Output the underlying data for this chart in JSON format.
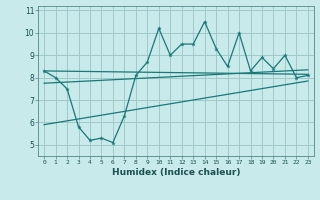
{
  "xlabel": "Humidex (Indice chaleur)",
  "background_color": "#c8eaea",
  "grid_color": "#a0c8c8",
  "line_color": "#1a7878",
  "xlim": [
    -0.5,
    23.5
  ],
  "ylim": [
    4.5,
    11.2
  ],
  "yticks": [
    5,
    6,
    7,
    8,
    9,
    10,
    11
  ],
  "xticks": [
    0,
    1,
    2,
    3,
    4,
    5,
    6,
    7,
    8,
    9,
    10,
    11,
    12,
    13,
    14,
    15,
    16,
    17,
    18,
    19,
    20,
    21,
    22,
    23
  ],
  "scatter_x": [
    0,
    1,
    2,
    3,
    4,
    5,
    6,
    7,
    8,
    9,
    10,
    11,
    12,
    13,
    14,
    15,
    16,
    17,
    18,
    19,
    20,
    21,
    22,
    23
  ],
  "scatter_y": [
    8.3,
    8.0,
    7.5,
    5.8,
    5.2,
    5.3,
    5.1,
    6.3,
    8.1,
    8.7,
    10.2,
    9.0,
    9.5,
    9.5,
    10.5,
    9.3,
    8.5,
    10.0,
    8.3,
    8.9,
    8.4,
    9.0,
    8.0,
    8.1
  ],
  "line1_x": [
    0,
    23
  ],
  "line1_y": [
    8.3,
    8.15
  ],
  "line2_x": [
    0,
    23
  ],
  "line2_y": [
    7.75,
    8.35
  ],
  "line3_x": [
    0,
    23
  ],
  "line3_y": [
    5.9,
    7.85
  ]
}
